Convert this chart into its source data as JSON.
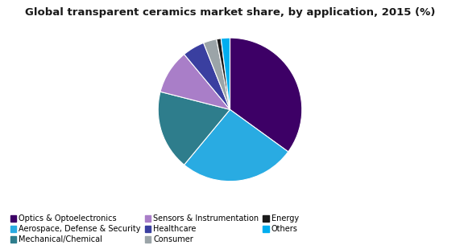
{
  "title": "Global transparent ceramics market share, by application, 2015 (%)",
  "slices": [
    {
      "label": "Optics & Optoelectronics",
      "value": 35,
      "color": "#3D0066"
    },
    {
      "label": "Aerospace, Defense & Security",
      "value": 26,
      "color": "#29ABE2"
    },
    {
      "label": "Mechanical/Chemical",
      "value": 18,
      "color": "#2E7D8C"
    },
    {
      "label": "Sensors & Instrumentation",
      "value": 10,
      "color": "#A97EC8"
    },
    {
      "label": "Healthcare",
      "value": 5,
      "color": "#3A3FA0"
    },
    {
      "label": "Consumer",
      "value": 3,
      "color": "#9BA4A8"
    },
    {
      "label": "Energy",
      "value": 1,
      "color": "#1C1C1C"
    },
    {
      "label": "Others",
      "value": 2,
      "color": "#00AEEF"
    }
  ],
  "legend_order": [
    "Optics & Optoelectronics",
    "Aerospace, Defense & Security",
    "Mechanical/Chemical",
    "Sensors & Instrumentation",
    "Healthcare",
    "Consumer",
    "Energy",
    "Others"
  ],
  "background_color": "#FFFFFF",
  "title_fontsize": 9.5,
  "startangle": 90
}
